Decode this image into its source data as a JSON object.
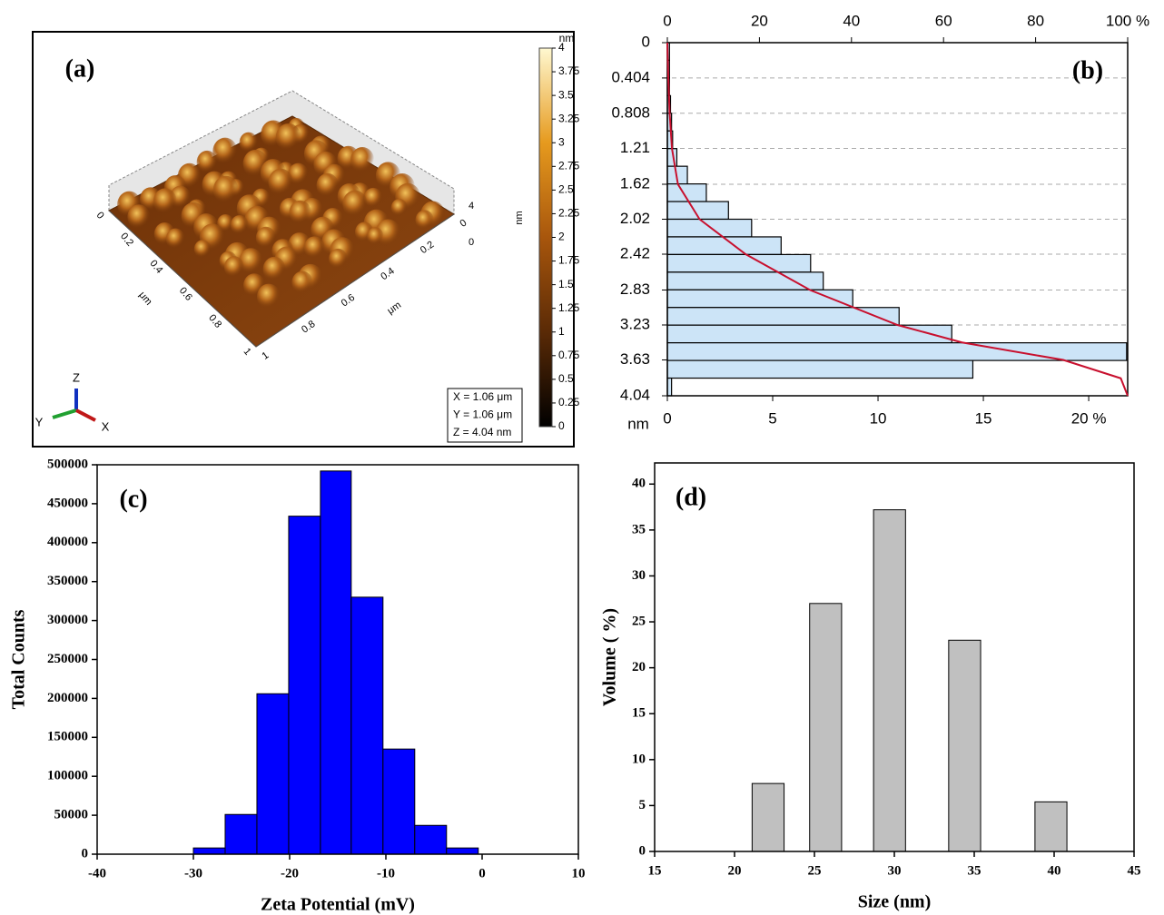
{
  "chart_data": [
    {
      "type": "surface",
      "panel_label": "(a)",
      "colorbar": {
        "label": "nm",
        "lim": [
          0,
          4
        ],
        "ticks": [
          0,
          0.25,
          0.5,
          0.75,
          1,
          1.25,
          1.5,
          1.75,
          2,
          2.25,
          2.5,
          2.75,
          3,
          3.25,
          3.5,
          3.75,
          4
        ]
      },
      "z_label": "nm",
      "z_ticks": [
        0,
        4
      ],
      "x_axis": {
        "label": "μm",
        "ticks": [
          0,
          0.2,
          0.4,
          0.6,
          0.8,
          1
        ]
      },
      "y_axis": {
        "label": "μm",
        "ticks": [
          0,
          0.2,
          0.4,
          0.6,
          0.8,
          1
        ]
      },
      "triad": [
        "Z",
        "Y",
        "X"
      ],
      "info": [
        "X = 1.06 μm",
        "Y = 1.06 μm",
        "Z = 4.04 nm"
      ]
    },
    {
      "type": "histogram-horizontal",
      "panel_label": "(b)",
      "y_label": "nm",
      "bins": [
        0,
        0.202,
        0.404,
        0.606,
        0.808,
        1.01,
        1.212,
        1.414,
        1.616,
        1.818,
        2.02,
        2.222,
        2.424,
        2.626,
        2.828,
        3.03,
        3.232,
        3.434,
        3.636,
        3.838,
        4.04
      ],
      "values": [
        0.1,
        0.1,
        0.1,
        0.15,
        0.2,
        0.25,
        0.45,
        0.95,
        1.85,
        2.9,
        4.0,
        5.4,
        6.8,
        7.4,
        8.8,
        11.0,
        13.5,
        21.8,
        14.5,
        0.2
      ],
      "color": "#cce4f7",
      "ylim": [
        0,
        4.04
      ],
      "yticks": [
        0,
        0.404,
        0.808,
        1.21,
        1.62,
        2.02,
        2.42,
        2.83,
        3.23,
        3.63,
        4.04
      ],
      "xlim": [
        0,
        21.85
      ],
      "xticks": [
        0,
        5,
        10,
        15,
        {
          "value": 20,
          "label": "20 %"
        }
      ],
      "x2lim": [
        0,
        100
      ],
      "x2ticks": [
        0,
        20,
        40,
        60,
        80,
        {
          "value": 100,
          "label": "100 %"
        }
      ],
      "grid": true,
      "curve": {
        "axis": "x2",
        "color": "#c8102e",
        "y": [
          0,
          0.404,
          0.808,
          1.21,
          1.62,
          2.02,
          2.42,
          2.83,
          3.23,
          3.43,
          3.63,
          3.84,
          4.04
        ],
        "values": [
          0,
          0.2,
          0.5,
          1,
          2.3,
          7,
          17,
          31,
          50,
          64,
          86,
          98.5,
          100
        ]
      }
    },
    {
      "type": "histogram",
      "panel_label": "(c)",
      "x_label": "Zeta Potential (mV)",
      "y_label": "Total Counts",
      "bins": [
        -30,
        -26.7,
        -23.4,
        -20.1,
        -16.8,
        -13.6,
        -10.3,
        -7,
        -3.7,
        -0.4
      ],
      "values": [
        8000,
        51000,
        206000,
        434000,
        492000,
        330000,
        135000,
        37000,
        8000
      ],
      "color": "#0000ff",
      "xlim": [
        -40,
        10
      ],
      "xticks": [
        -40,
        -30,
        -20,
        -10,
        0,
        10
      ],
      "ylim": [
        0,
        500000
      ],
      "yticks": [
        0,
        50000,
        100000,
        150000,
        200000,
        250000,
        300000,
        350000,
        400000,
        450000,
        500000
      ]
    },
    {
      "type": "bar",
      "panel_label": "(d)",
      "x_label": "Size (nm)",
      "y_label": "Volume ( %)",
      "x": [
        22.1,
        25.7,
        29.7,
        34.4,
        39.8
      ],
      "values": [
        7.4,
        27,
        37.2,
        23,
        5.4
      ],
      "color": "#c0c0c0",
      "xlim": [
        15,
        45
      ],
      "xticks": [
        15,
        20,
        25,
        30,
        35,
        40,
        45
      ],
      "ylim": [
        0,
        42.3
      ],
      "yticks": [
        0,
        5,
        10,
        15,
        20,
        25,
        30,
        35,
        40
      ]
    }
  ]
}
